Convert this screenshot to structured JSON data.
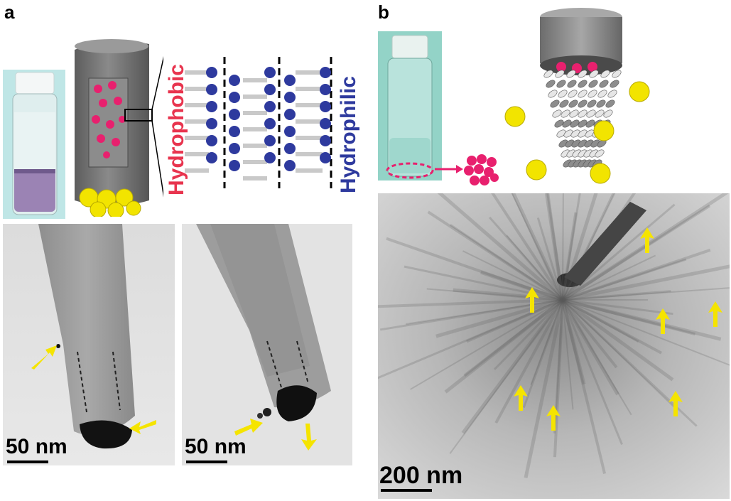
{
  "figure": {
    "panel_a": {
      "letter": "a",
      "label_hydrophobic": "Hydrophobic",
      "label_hydrophilic": "Hydrophilic",
      "scale_left": "50 nm",
      "scale_right": "50 nm"
    },
    "panel_b": {
      "letter": "b",
      "scale": "200 nm"
    },
    "colors": {
      "hydrophobic": "#e8344e",
      "hydrophilic": "#2e3a9e",
      "nanoparticle": "#f2e400",
      "payload": "#e8206e",
      "arrow": "#f5e400",
      "tube": "#7a7a7a"
    }
  }
}
